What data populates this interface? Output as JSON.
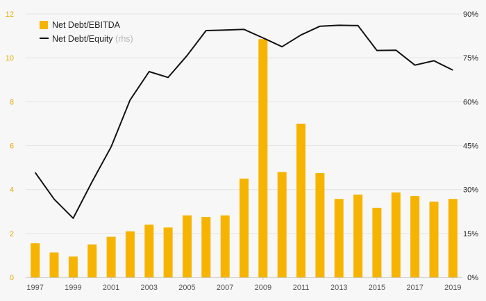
{
  "chart_data": {
    "type": "bar+line",
    "x": [
      "1997",
      "1998",
      "1999",
      "2000",
      "2001",
      "2002",
      "2003",
      "2004",
      "2005",
      "2006",
      "2007",
      "2008",
      "2009",
      "2010",
      "2011",
      "2012",
      "2013",
      "2014",
      "2015",
      "2016",
      "2017",
      "2018",
      "2019"
    ],
    "x_tick_labels": [
      "1997",
      "1999",
      "2001",
      "2003",
      "2005",
      "2007",
      "2009",
      "2011",
      "2013",
      "2015",
      "2017",
      "2019"
    ],
    "series": [
      {
        "name": "Net Debt/EBITDA",
        "type": "bar",
        "axis": "left",
        "color": "#f6b400",
        "values": [
          1.55,
          1.13,
          0.95,
          1.5,
          1.85,
          2.1,
          2.4,
          2.27,
          2.82,
          2.75,
          2.82,
          4.5,
          10.85,
          4.8,
          7.0,
          4.75,
          3.57,
          3.77,
          3.17,
          3.87,
          3.7,
          3.45,
          3.57
        ]
      },
      {
        "name": "Net Debt/Equity",
        "note": "(rhs)",
        "type": "line",
        "axis": "right",
        "color": "#111111",
        "values": [
          35.8,
          26.7,
          20.2,
          32.7,
          44.6,
          60.6,
          70.3,
          68.3,
          75.8,
          84.3,
          84.5,
          84.7,
          81.8,
          78.8,
          82.8,
          85.8,
          86.1,
          86.0,
          77.5,
          77.6,
          72.5,
          74.0,
          70.8
        ]
      }
    ],
    "left_axis": {
      "ylim": [
        0,
        12
      ],
      "ticks": [
        "0",
        "2",
        "4",
        "6",
        "8",
        "10",
        "12"
      ]
    },
    "right_axis": {
      "ylim": [
        0,
        90
      ],
      "ticks": [
        "0%",
        "15%",
        "30%",
        "45%",
        "60%",
        "75%",
        "90%"
      ]
    },
    "title": "",
    "xlabel": "",
    "ylabel": "",
    "grid": true,
    "legend_position": "top-left"
  }
}
